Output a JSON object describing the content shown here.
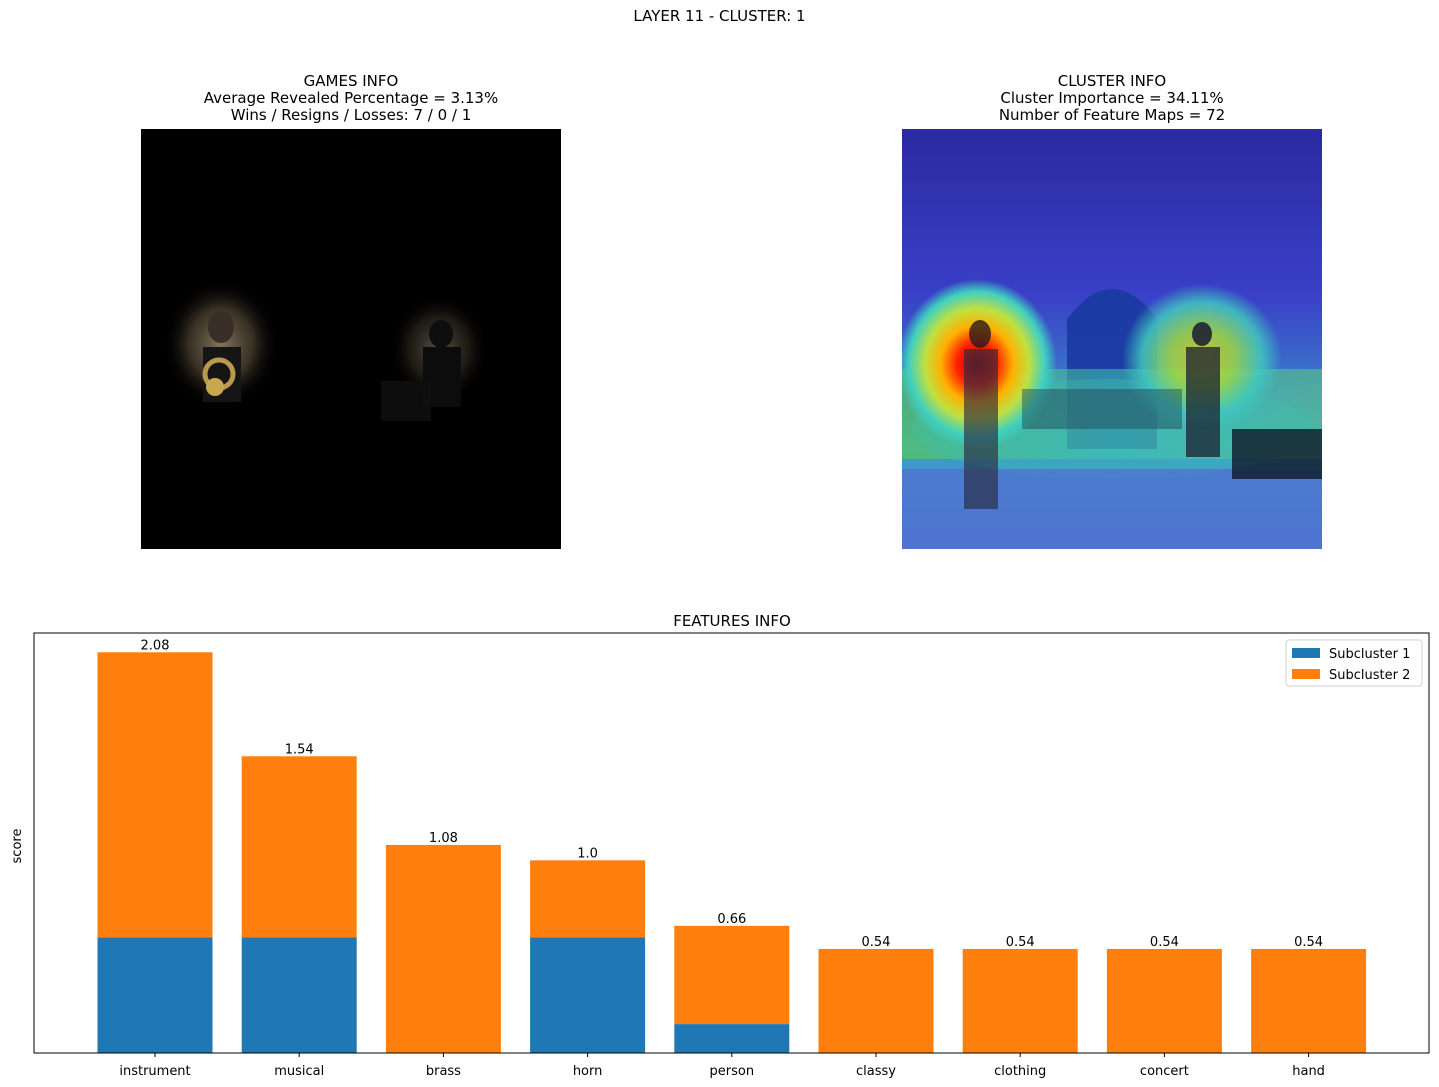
{
  "figure": {
    "suptitle": "LAYER 11 - CLUSTER: 1"
  },
  "games_info": {
    "line1": "GAMES INFO",
    "line2": "Average Revealed Percentage = 3.13%",
    "line3": "Wins / Resigns / Losses: 7 / 0 / 1"
  },
  "cluster_info": {
    "line1": "CLUSTER INFO",
    "line2": "Cluster Importance = 34.11%",
    "line3": "Number of Feature Maps = 72"
  },
  "chart_data": {
    "type": "bar",
    "stacked": true,
    "title": "FEATURES INFO",
    "xlabel": "",
    "ylabel": "score",
    "categories": [
      "instrument",
      "musical",
      "brass",
      "horn",
      "person",
      "classy",
      "clothing",
      "concert",
      "hand"
    ],
    "series": [
      {
        "name": "Subcluster 1",
        "color": "#1f77b4",
        "values": [
          0.6,
          0.6,
          0.0,
          0.6,
          0.15,
          0.0,
          0.0,
          0.0,
          0.0
        ]
      },
      {
        "name": "Subcluster 2",
        "color": "#ff7f0e",
        "values": [
          1.48,
          0.94,
          1.08,
          0.4,
          0.51,
          0.54,
          0.54,
          0.54,
          0.54
        ]
      }
    ],
    "totals": [
      "2.08",
      "1.54",
      "1.08",
      "1.0",
      "0.66",
      "0.54",
      "0.54",
      "0.54",
      "0.54"
    ],
    "ylim": [
      0,
      2.18
    ],
    "legend_position": "top-right",
    "grid": false
  }
}
